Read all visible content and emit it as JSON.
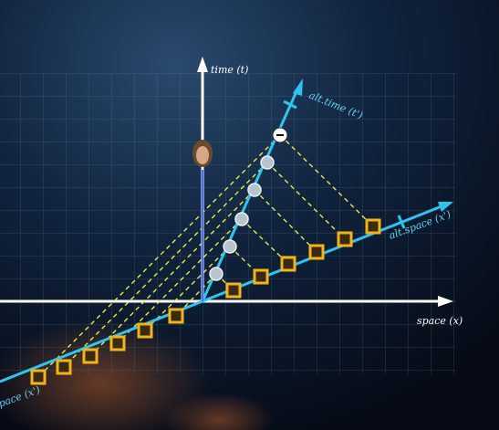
{
  "axes": {
    "time": "time (t)",
    "alt_time": "alt.time (t')",
    "alt_space": "alt.space (x')",
    "space": "space (x)",
    "alt_space_cropped": "pace (x')"
  }
}
